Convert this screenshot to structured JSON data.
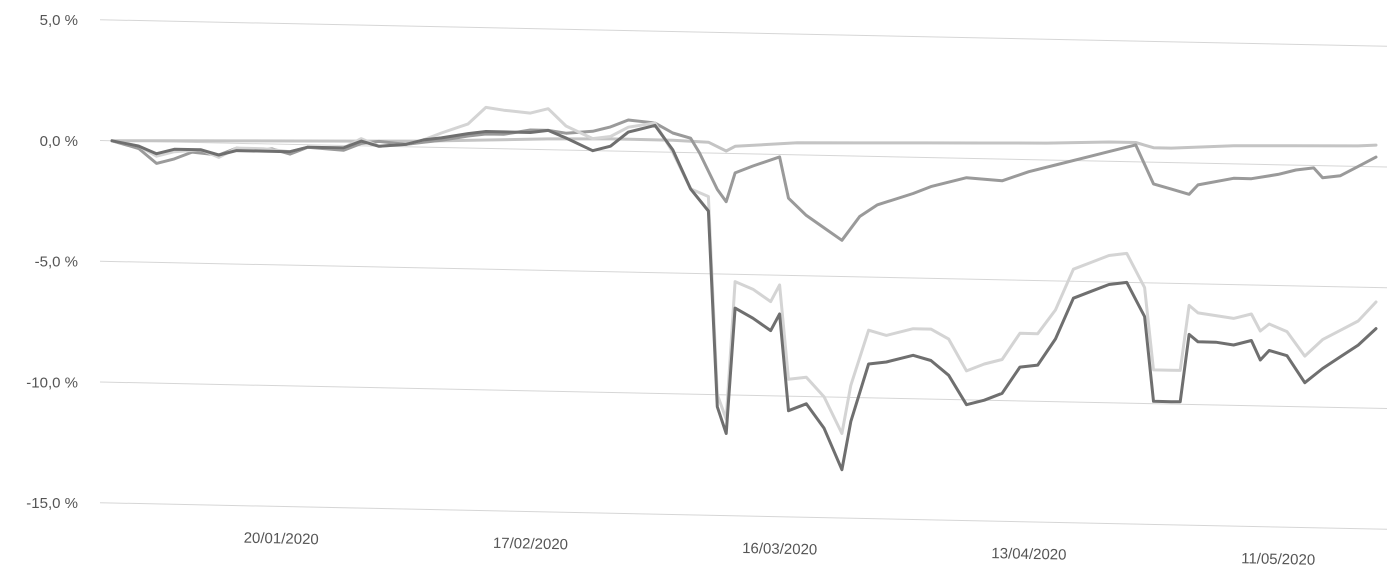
{
  "chart_data": {
    "type": "line",
    "title": "",
    "xlabel": "",
    "ylabel": "",
    "y_unit": "%",
    "ylim": [
      -15,
      5
    ],
    "xlim": [
      "2020-01-01",
      "2020-05-22"
    ],
    "grid": "horizontal",
    "legend": "none",
    "y_ticks": [
      {
        "value": 5,
        "label": "5,0 %"
      },
      {
        "value": 0,
        "label": "0,0 %"
      },
      {
        "value": -5,
        "label": "-5,0 %"
      },
      {
        "value": -10,
        "label": "-10,0 %"
      },
      {
        "value": -15,
        "label": "-15,0 %"
      }
    ],
    "x_ticks": [
      {
        "date": "2020-01-20",
        "label": "20/01/2020"
      },
      {
        "date": "2020-02-17",
        "label": "17/02/2020"
      },
      {
        "date": "2020-03-16",
        "label": "16/03/2020"
      },
      {
        "date": "2020-04-13",
        "label": "13/04/2020"
      },
      {
        "date": "2020-05-11",
        "label": "11/05/2020"
      }
    ],
    "series": [
      {
        "color": "#c4c4c4",
        "points": [
          [
            "2020-01-01",
            0.0
          ],
          [
            "2020-01-08",
            0.05
          ],
          [
            "2020-01-15",
            0.1
          ],
          [
            "2020-01-22",
            0.15
          ],
          [
            "2020-01-29",
            0.2
          ],
          [
            "2020-02-05",
            0.25
          ],
          [
            "2020-02-12",
            0.35
          ],
          [
            "2020-02-19",
            0.45
          ],
          [
            "2020-02-26",
            0.5
          ],
          [
            "2020-03-04",
            0.5
          ],
          [
            "2020-03-08",
            0.45
          ],
          [
            "2020-03-10",
            0.1
          ],
          [
            "2020-03-11",
            0.3
          ],
          [
            "2020-03-18",
            0.5
          ],
          [
            "2020-03-25",
            0.55
          ],
          [
            "2020-04-01",
            0.6
          ],
          [
            "2020-04-08",
            0.65
          ],
          [
            "2020-04-15",
            0.7
          ],
          [
            "2020-04-22",
            0.8
          ],
          [
            "2020-04-25",
            0.8
          ],
          [
            "2020-04-27",
            0.6
          ],
          [
            "2020-04-29",
            0.6
          ],
          [
            "2020-05-06",
            0.75
          ],
          [
            "2020-05-13",
            0.8
          ],
          [
            "2020-05-20",
            0.85
          ],
          [
            "2020-05-22",
            0.9
          ]
        ]
      },
      {
        "color": "#9a9a9a",
        "points": [
          [
            "2020-01-01",
            0.0
          ],
          [
            "2020-01-04",
            -0.3
          ],
          [
            "2020-01-06",
            -0.9
          ],
          [
            "2020-01-08",
            -0.7
          ],
          [
            "2020-01-10",
            -0.4
          ],
          [
            "2020-01-13",
            -0.5
          ],
          [
            "2020-01-15",
            -0.2
          ],
          [
            "2020-01-17",
            -0.3
          ],
          [
            "2020-01-19",
            -0.2
          ],
          [
            "2020-01-21",
            -0.4
          ],
          [
            "2020-01-23",
            -0.1
          ],
          [
            "2020-01-27",
            -0.2
          ],
          [
            "2020-01-29",
            0.1
          ],
          [
            "2020-01-31",
            0.2
          ],
          [
            "2020-02-03",
            0.1
          ],
          [
            "2020-02-05",
            0.2
          ],
          [
            "2020-02-07",
            0.3
          ],
          [
            "2020-02-10",
            0.5
          ],
          [
            "2020-02-12",
            0.6
          ],
          [
            "2020-02-14",
            0.6
          ],
          [
            "2020-02-17",
            0.8
          ],
          [
            "2020-02-19",
            0.8
          ],
          [
            "2020-02-21",
            0.7
          ],
          [
            "2020-02-24",
            0.8
          ],
          [
            "2020-02-26",
            1.0
          ],
          [
            "2020-02-28",
            1.3
          ],
          [
            "2020-03-02",
            1.2
          ],
          [
            "2020-03-04",
            0.8
          ],
          [
            "2020-03-06",
            0.6
          ],
          [
            "2020-03-07",
            0.0
          ],
          [
            "2020-03-09",
            -1.5
          ],
          [
            "2020-03-10",
            -2.0
          ],
          [
            "2020-03-11",
            -0.8
          ],
          [
            "2020-03-13",
            -0.5
          ],
          [
            "2020-03-16",
            -0.1
          ],
          [
            "2020-03-17",
            -1.8
          ],
          [
            "2020-03-19",
            -2.5
          ],
          [
            "2020-03-21",
            -3.0
          ],
          [
            "2020-03-23",
            -3.5
          ],
          [
            "2020-03-25",
            -2.5
          ],
          [
            "2020-03-27",
            -2.0
          ],
          [
            "2020-03-31",
            -1.5
          ],
          [
            "2020-04-02",
            -1.2
          ],
          [
            "2020-04-06",
            -0.8
          ],
          [
            "2020-04-10",
            -0.9
          ],
          [
            "2020-04-13",
            -0.5
          ],
          [
            "2020-04-16",
            -0.2
          ],
          [
            "2020-04-20",
            0.2
          ],
          [
            "2020-04-22",
            0.4
          ],
          [
            "2020-04-25",
            0.7
          ],
          [
            "2020-04-27",
            -0.9
          ],
          [
            "2020-04-29",
            -1.1
          ],
          [
            "2020-05-01",
            -1.3
          ],
          [
            "2020-05-02",
            -0.9
          ],
          [
            "2020-05-06",
            -0.6
          ],
          [
            "2020-05-08",
            -0.6
          ],
          [
            "2020-05-11",
            -0.4
          ],
          [
            "2020-05-13",
            -0.2
          ],
          [
            "2020-05-15",
            -0.1
          ],
          [
            "2020-05-16",
            -0.5
          ],
          [
            "2020-05-18",
            -0.4
          ],
          [
            "2020-05-20",
            0.0
          ],
          [
            "2020-05-22",
            0.4
          ]
        ]
      },
      {
        "color": "#d4d4d4",
        "points": [
          [
            "2020-01-01",
            0.0
          ],
          [
            "2020-01-04",
            -0.2
          ],
          [
            "2020-01-06",
            -0.6
          ],
          [
            "2020-01-08",
            -0.4
          ],
          [
            "2020-01-11",
            -0.3
          ],
          [
            "2020-01-13",
            -0.6
          ],
          [
            "2020-01-15",
            -0.2
          ],
          [
            "2020-01-18",
            -0.2
          ],
          [
            "2020-01-21",
            -0.3
          ],
          [
            "2020-01-23",
            -0.1
          ],
          [
            "2020-01-27",
            -0.1
          ],
          [
            "2020-01-29",
            0.3
          ],
          [
            "2020-01-31",
            0.0
          ],
          [
            "2020-02-03",
            0.1
          ],
          [
            "2020-02-05",
            0.3
          ],
          [
            "2020-02-07",
            0.6
          ],
          [
            "2020-02-10",
            1.0
          ],
          [
            "2020-02-12",
            1.7
          ],
          [
            "2020-02-14",
            1.6
          ],
          [
            "2020-02-17",
            1.5
          ],
          [
            "2020-02-19",
            1.7
          ],
          [
            "2020-02-21",
            1.0
          ],
          [
            "2020-02-24",
            0.5
          ],
          [
            "2020-02-26",
            0.6
          ],
          [
            "2020-02-28",
            1.0
          ],
          [
            "2020-03-02",
            1.2
          ],
          [
            "2020-03-04",
            0.0
          ],
          [
            "2020-03-06",
            -1.5
          ],
          [
            "2020-03-08",
            -1.8
          ],
          [
            "2020-03-09",
            -10.0
          ],
          [
            "2020-03-10",
            -11.0
          ],
          [
            "2020-03-11",
            -5.3
          ],
          [
            "2020-03-13",
            -5.6
          ],
          [
            "2020-03-15",
            -6.1
          ],
          [
            "2020-03-16",
            -5.4
          ],
          [
            "2020-03-17",
            -9.3
          ],
          [
            "2020-03-19",
            -9.2
          ],
          [
            "2020-03-21",
            -10.0
          ],
          [
            "2020-03-23",
            -11.5
          ],
          [
            "2020-03-24",
            -9.5
          ],
          [
            "2020-03-26",
            -7.2
          ],
          [
            "2020-03-28",
            -7.4
          ],
          [
            "2020-03-31",
            -7.1
          ],
          [
            "2020-04-02",
            -7.1
          ],
          [
            "2020-04-04",
            -7.5
          ],
          [
            "2020-04-06",
            -8.8
          ],
          [
            "2020-04-08",
            -8.5
          ],
          [
            "2020-04-10",
            -8.3
          ],
          [
            "2020-04-12",
            -7.2
          ],
          [
            "2020-04-14",
            -7.2
          ],
          [
            "2020-04-16",
            -6.2
          ],
          [
            "2020-04-18",
            -4.5
          ],
          [
            "2020-04-20",
            -4.2
          ],
          [
            "2020-04-22",
            -3.9
          ],
          [
            "2020-04-24",
            -3.8
          ],
          [
            "2020-04-26",
            -5.2
          ],
          [
            "2020-04-27",
            -8.6
          ],
          [
            "2020-04-29",
            -8.6
          ],
          [
            "2020-04-30",
            -8.6
          ],
          [
            "2020-05-01",
            -5.9
          ],
          [
            "2020-05-02",
            -6.2
          ],
          [
            "2020-05-04",
            -6.3
          ],
          [
            "2020-05-06",
            -6.4
          ],
          [
            "2020-05-08",
            -6.2
          ],
          [
            "2020-05-09",
            -6.9
          ],
          [
            "2020-05-10",
            -6.6
          ],
          [
            "2020-05-12",
            -6.9
          ],
          [
            "2020-05-14",
            -7.9
          ],
          [
            "2020-05-16",
            -7.2
          ],
          [
            "2020-05-18",
            -6.8
          ],
          [
            "2020-05-20",
            -6.4
          ],
          [
            "2020-05-22",
            -5.6
          ]
        ]
      },
      {
        "color": "#6f6f6f",
        "points": [
          [
            "2020-01-01",
            0.0
          ],
          [
            "2020-01-04",
            -0.2
          ],
          [
            "2020-01-06",
            -0.5
          ],
          [
            "2020-01-08",
            -0.3
          ],
          [
            "2020-01-11",
            -0.3
          ],
          [
            "2020-01-13",
            -0.5
          ],
          [
            "2020-01-15",
            -0.3
          ],
          [
            "2020-01-18",
            -0.3
          ],
          [
            "2020-01-21",
            -0.3
          ],
          [
            "2020-01-23",
            -0.1
          ],
          [
            "2020-01-27",
            -0.1
          ],
          [
            "2020-01-29",
            0.2
          ],
          [
            "2020-01-31",
            0.0
          ],
          [
            "2020-02-03",
            0.1
          ],
          [
            "2020-02-05",
            0.3
          ],
          [
            "2020-02-07",
            0.4
          ],
          [
            "2020-02-10",
            0.6
          ],
          [
            "2020-02-12",
            0.7
          ],
          [
            "2020-02-14",
            0.7
          ],
          [
            "2020-02-17",
            0.7
          ],
          [
            "2020-02-19",
            0.8
          ],
          [
            "2020-02-21",
            0.5
          ],
          [
            "2020-02-24",
            0.0
          ],
          [
            "2020-02-26",
            0.2
          ],
          [
            "2020-02-28",
            0.8
          ],
          [
            "2020-03-02",
            1.1
          ],
          [
            "2020-03-04",
            0.1
          ],
          [
            "2020-03-06",
            -1.5
          ],
          [
            "2020-03-08",
            -2.4
          ],
          [
            "2020-03-09",
            -10.5
          ],
          [
            "2020-03-10",
            -11.6
          ],
          [
            "2020-03-11",
            -6.4
          ],
          [
            "2020-03-13",
            -6.8
          ],
          [
            "2020-03-15",
            -7.3
          ],
          [
            "2020-03-16",
            -6.6
          ],
          [
            "2020-03-17",
            -10.6
          ],
          [
            "2020-03-19",
            -10.3
          ],
          [
            "2020-03-21",
            -11.3
          ],
          [
            "2020-03-23",
            -13.0
          ],
          [
            "2020-03-24",
            -11.0
          ],
          [
            "2020-03-26",
            -8.6
          ],
          [
            "2020-03-28",
            -8.5
          ],
          [
            "2020-03-31",
            -8.2
          ],
          [
            "2020-04-02",
            -8.4
          ],
          [
            "2020-04-04",
            -9.0
          ],
          [
            "2020-04-06",
            -10.2
          ],
          [
            "2020-04-08",
            -10.0
          ],
          [
            "2020-04-10",
            -9.7
          ],
          [
            "2020-04-12",
            -8.6
          ],
          [
            "2020-04-14",
            -8.5
          ],
          [
            "2020-04-16",
            -7.4
          ],
          [
            "2020-04-18",
            -5.7
          ],
          [
            "2020-04-20",
            -5.4
          ],
          [
            "2020-04-22",
            -5.1
          ],
          [
            "2020-04-24",
            -5.0
          ],
          [
            "2020-04-26",
            -6.4
          ],
          [
            "2020-04-27",
            -9.9
          ],
          [
            "2020-04-29",
            -9.9
          ],
          [
            "2020-04-30",
            -9.9
          ],
          [
            "2020-05-01",
            -7.1
          ],
          [
            "2020-05-02",
            -7.4
          ],
          [
            "2020-05-04",
            -7.4
          ],
          [
            "2020-05-06",
            -7.5
          ],
          [
            "2020-05-08",
            -7.3
          ],
          [
            "2020-05-09",
            -8.1
          ],
          [
            "2020-05-10",
            -7.7
          ],
          [
            "2020-05-12",
            -7.9
          ],
          [
            "2020-05-14",
            -9.0
          ],
          [
            "2020-05-16",
            -8.4
          ],
          [
            "2020-05-18",
            -7.9
          ],
          [
            "2020-05-20",
            -7.4
          ],
          [
            "2020-05-22",
            -6.7
          ]
        ]
      }
    ]
  }
}
